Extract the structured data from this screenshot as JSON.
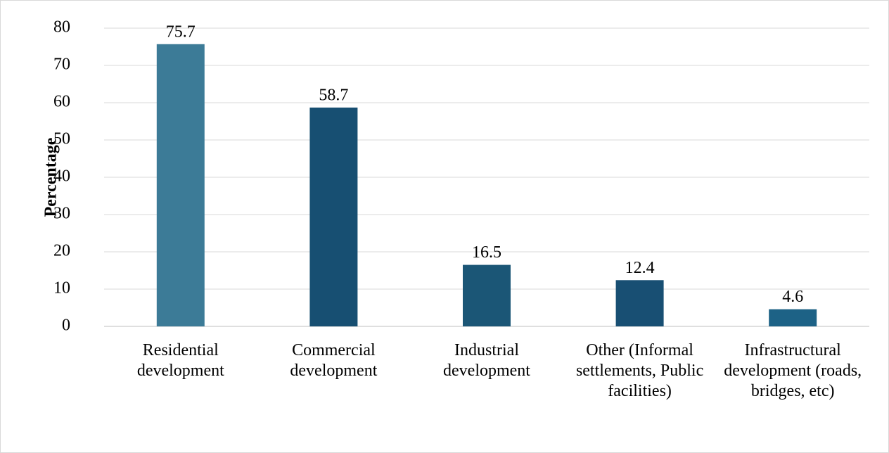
{
  "chart_data": {
    "type": "bar",
    "y_label": "Percentage",
    "categories": [
      "Residential development",
      "Commercial development",
      "Industrial development",
      "Other (Informal settlements, Public facilities)",
      "Infrastructural development (roads, bridges, etc)"
    ],
    "values": [
      75.7,
      58.7,
      16.5,
      12.4,
      4.6
    ],
    "colors": [
      "#3c7b97",
      "#174f72",
      "#1b5676",
      "#184f73",
      "#1d6286"
    ],
    "ylim": [
      0,
      80
    ],
    "yticks": [
      0,
      10,
      20,
      30,
      40,
      50,
      60,
      70,
      80
    ],
    "grid": true
  }
}
